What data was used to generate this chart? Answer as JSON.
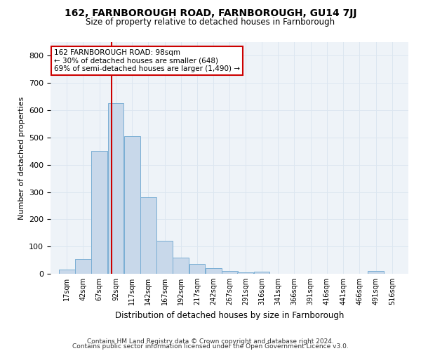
{
  "title": "162, FARNBOROUGH ROAD, FARNBOROUGH, GU14 7JJ",
  "subtitle": "Size of property relative to detached houses in Farnborough",
  "xlabel": "Distribution of detached houses by size in Farnborough",
  "ylabel": "Number of detached properties",
  "bar_color": "#c8d8ea",
  "bar_edge_color": "#7aaed4",
  "grid_color": "#dce6f0",
  "background_color": "#ffffff",
  "annotation_line_color": "#cc0000",
  "annotation_box_color": "#cc0000",
  "annotation_text": "162 FARNBOROUGH ROAD: 98sqm\n← 30% of detached houses are smaller (648)\n69% of semi-detached houses are larger (1,490) →",
  "property_sqm": 98,
  "bin_labels": [
    "17sqm",
    "42sqm",
    "67sqm",
    "92sqm",
    "117sqm",
    "142sqm",
    "167sqm",
    "192sqm",
    "217sqm",
    "242sqm",
    "267sqm",
    "291sqm",
    "316sqm",
    "341sqm",
    "366sqm",
    "391sqm",
    "416sqm",
    "441sqm",
    "466sqm",
    "491sqm",
    "516sqm"
  ],
  "bin_edges": [
    17,
    42,
    67,
    92,
    117,
    142,
    167,
    192,
    217,
    242,
    267,
    291,
    316,
    341,
    366,
    391,
    416,
    441,
    466,
    491,
    516
  ],
  "bar_heights": [
    15,
    55,
    450,
    625,
    505,
    280,
    120,
    60,
    37,
    20,
    10,
    5,
    8,
    0,
    0,
    0,
    0,
    0,
    0,
    10
  ],
  "ylim": [
    0,
    850
  ],
  "yticks": [
    0,
    100,
    200,
    300,
    400,
    500,
    600,
    700,
    800
  ],
  "footnote1": "Contains HM Land Registry data © Crown copyright and database right 2024.",
  "footnote2": "Contains public sector information licensed under the Open Government Licence v3.0."
}
